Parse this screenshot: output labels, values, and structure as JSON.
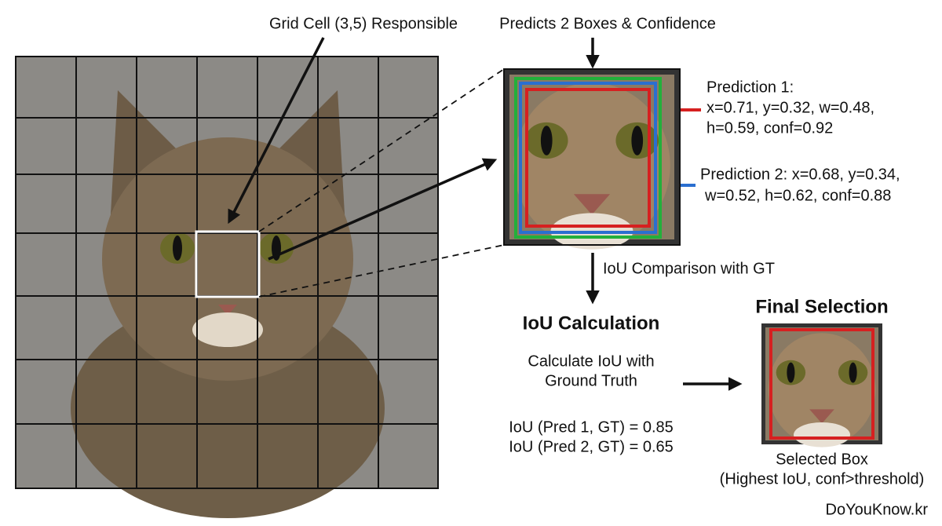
{
  "header": {
    "grid_label": "Grid Cell (3,5) Responsible",
    "predict_label": "Predicts 2 Boxes & Confidence"
  },
  "prediction_1": {
    "lines": [
      "Prediction 1:",
      "x=0.71, y=0.32, w=0.48,",
      "h=0.59, conf=0.92"
    ]
  },
  "prediction_2": {
    "lines": [
      "Prediction 2: x=0.68, y=0.34,",
      "w=0.52, h=0.62, conf=0.88"
    ]
  },
  "iou_step": {
    "arrow_label": "IoU Comparison with GT",
    "title": "IoU Calculation",
    "description": [
      "Calculate IoU with",
      "Ground Truth"
    ],
    "results": [
      "IoU (Pred 1, GT) = 0.85",
      "IoU (Pred 2, GT) = 0.65"
    ]
  },
  "final": {
    "title": "Final Selection",
    "caption": [
      "Selected Box",
      "(Highest IoU, conf>threshold)"
    ]
  },
  "watermark": "DoYouKnow.kr"
}
